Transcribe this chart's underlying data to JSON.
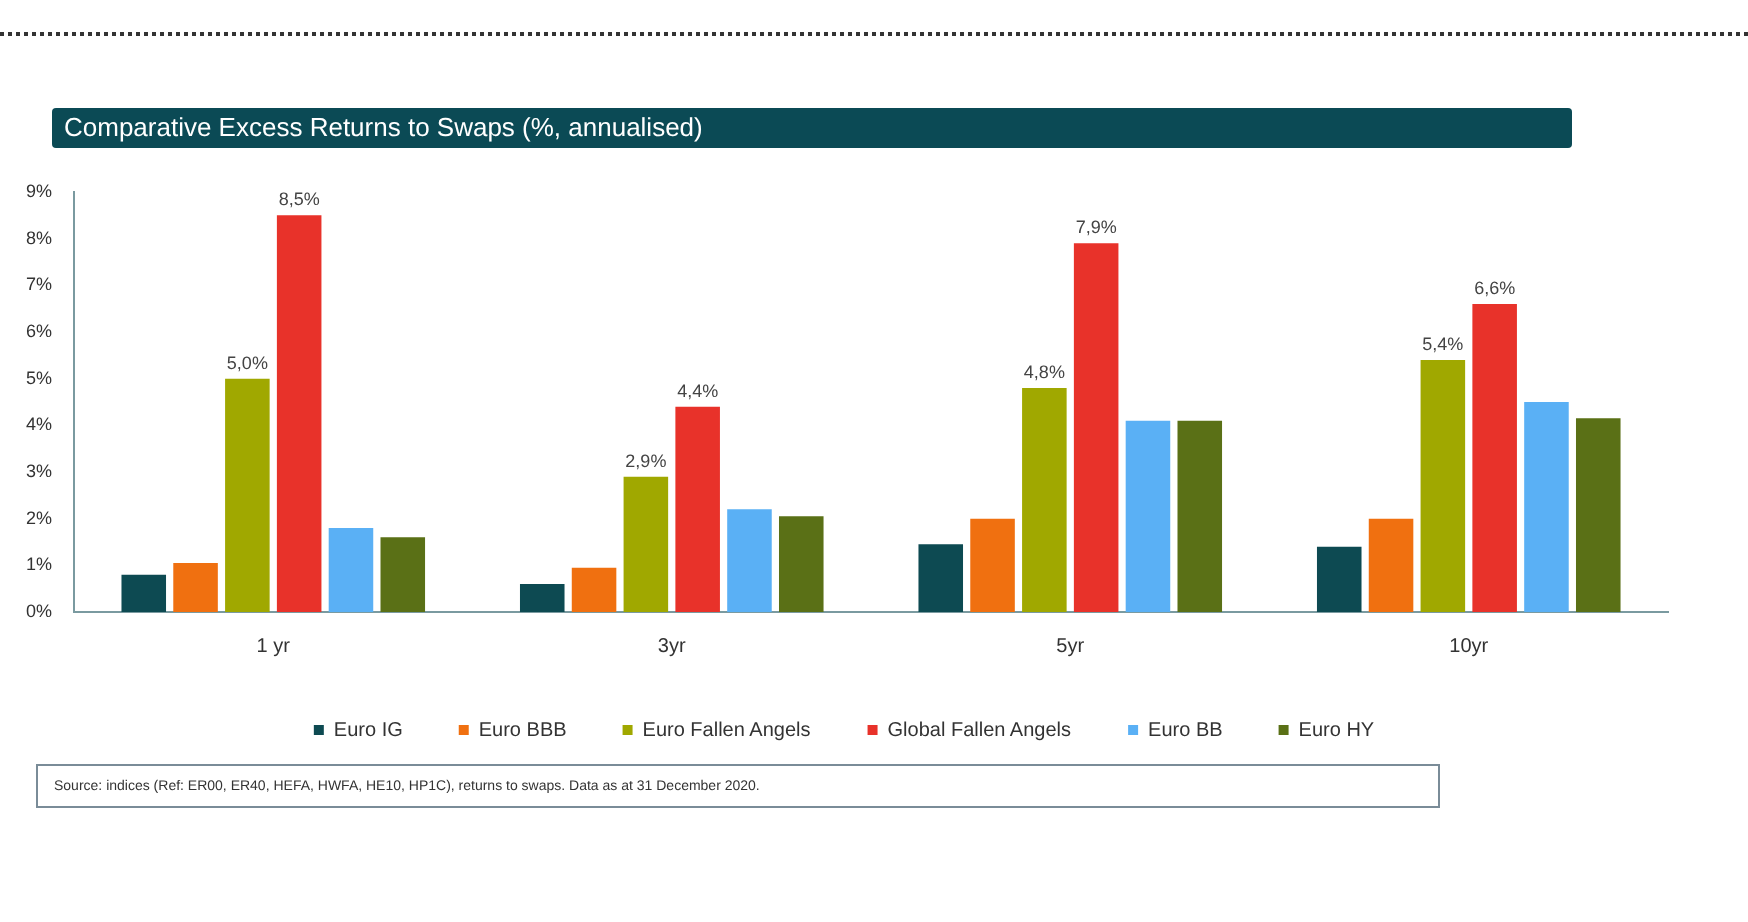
{
  "chart_data": {
    "type": "bar",
    "title": "Comparative Excess Returns to Swaps (%, annualised)",
    "categories": [
      "1 yr",
      "3yr",
      "5yr",
      "10yr"
    ],
    "series": [
      {
        "name": "Euro IG",
        "color": "#0d4a52",
        "values": [
          0.8,
          0.6,
          1.45,
          1.4
        ]
      },
      {
        "name": "Euro BBB",
        "color": "#f07010",
        "values": [
          1.05,
          0.95,
          2.0,
          2.0
        ]
      },
      {
        "name": "Euro Fallen Angels",
        "color": "#a0a800",
        "values": [
          5.0,
          2.9,
          4.8,
          5.4
        ],
        "value_labels": [
          "5,0%",
          "2,9%",
          "4,8%",
          "5,4%"
        ]
      },
      {
        "name": "Global Fallen Angels",
        "color": "#e8322a",
        "values": [
          8.5,
          4.4,
          7.9,
          6.6
        ],
        "value_labels": [
          "8,5%",
          "4,4%",
          "7,9%",
          "6,6%"
        ]
      },
      {
        "name": "Euro BB",
        "color": "#5ab0f5",
        "values": [
          1.8,
          2.2,
          4.1,
          4.5
        ]
      },
      {
        "name": "Euro HY",
        "color": "#5a7016",
        "values": [
          1.6,
          2.05,
          4.1,
          4.15
        ]
      }
    ],
    "ylim": [
      0,
      9
    ],
    "yticks": [
      {
        "value": 0,
        "label": "0%"
      },
      {
        "value": 1,
        "label": "1%"
      },
      {
        "value": 2,
        "label": "2%"
      },
      {
        "value": 3,
        "label": "3%"
      },
      {
        "value": 4,
        "label": "4%"
      },
      {
        "value": 5,
        "label": "5%"
      },
      {
        "value": 6,
        "label": "6%"
      },
      {
        "value": 7,
        "label": "7%"
      },
      {
        "value": 8,
        "label": "8%"
      },
      {
        "value": 9,
        "label": "9%"
      }
    ],
    "grid": false,
    "legend": "bottom",
    "annotations": [
      "Source: indices (Ref: ER00, ER40, HEFA, HWFA, HE10, HP1C), returns to swaps. Data as at 31 December 2020."
    ]
  }
}
